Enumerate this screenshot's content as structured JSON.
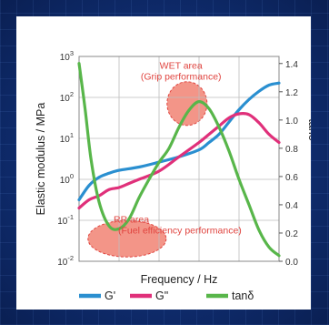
{
  "chart_data": {
    "type": "line",
    "xlabel": "Frequency / Hz",
    "ylabel_left": "Elastic modulus / MPa",
    "ylabel_right": "tanδ",
    "y_left_ticks": [
      {
        "base": "10",
        "exp": "3",
        "value": 3
      },
      {
        "base": "10",
        "exp": "2",
        "value": 2
      },
      {
        "base": "10",
        "exp": "1",
        "value": 1
      },
      {
        "base": "10",
        "exp": "0",
        "value": 0
      },
      {
        "base": "10",
        "exp": "-1",
        "value": -1
      },
      {
        "base": "10",
        "exp": "-2",
        "value": -2
      }
    ],
    "y_left_scale": "log",
    "y_left_range": [
      -2,
      3
    ],
    "y_right_ticks": [
      "1.4",
      "1.2",
      "1.0",
      "0.8",
      "0.6",
      "0.4",
      "0.2",
      "0.0"
    ],
    "y_right_range": [
      0.0,
      1.45
    ],
    "x_range": [
      0,
      1
    ],
    "grid": true,
    "legend_position": "bottom",
    "series": [
      {
        "name": "G'",
        "color": "#2a8fd0",
        "axis": "left",
        "x": [
          0.0,
          0.05,
          0.1,
          0.15,
          0.2,
          0.3,
          0.4,
          0.5,
          0.6,
          0.65,
          0.7,
          0.75,
          0.8,
          0.85,
          0.9,
          0.95,
          1.0
        ],
        "y": [
          -0.5,
          -0.15,
          0.05,
          0.15,
          0.22,
          0.3,
          0.42,
          0.55,
          0.72,
          0.9,
          1.1,
          1.4,
          1.7,
          1.95,
          2.15,
          2.3,
          2.35
        ]
      },
      {
        "name": "G\"",
        "color": "#e0307a",
        "axis": "left",
        "x": [
          0.0,
          0.05,
          0.1,
          0.15,
          0.2,
          0.25,
          0.3,
          0.4,
          0.5,
          0.6,
          0.65,
          0.7,
          0.75,
          0.8,
          0.85,
          0.9,
          0.95,
          1.0
        ],
        "y": [
          -0.7,
          -0.5,
          -0.4,
          -0.25,
          -0.2,
          -0.1,
          0.0,
          0.2,
          0.55,
          0.9,
          1.1,
          1.3,
          1.5,
          1.6,
          1.58,
          1.38,
          1.1,
          0.9
        ]
      },
      {
        "name": "tanδ",
        "color": "#58b64a",
        "axis": "right",
        "x": [
          0.0,
          0.03,
          0.06,
          0.1,
          0.15,
          0.2,
          0.25,
          0.3,
          0.35,
          0.4,
          0.45,
          0.5,
          0.55,
          0.6,
          0.65,
          0.7,
          0.75,
          0.8,
          0.85,
          0.9,
          0.95,
          1.0
        ],
        "y": [
          1.4,
          1.08,
          0.72,
          0.42,
          0.25,
          0.23,
          0.3,
          0.45,
          0.58,
          0.7,
          0.8,
          0.95,
          1.07,
          1.13,
          1.08,
          0.95,
          0.78,
          0.58,
          0.4,
          0.22,
          0.1,
          0.04
        ]
      }
    ],
    "annotations": [
      {
        "lines": [
          "WET area",
          "(Grip performance)"
        ],
        "color": "#f07a6a"
      },
      {
        "lines": [
          "RR area",
          "(Fuel efficiency performance)"
        ],
        "color": "#f07a6a"
      }
    ]
  }
}
